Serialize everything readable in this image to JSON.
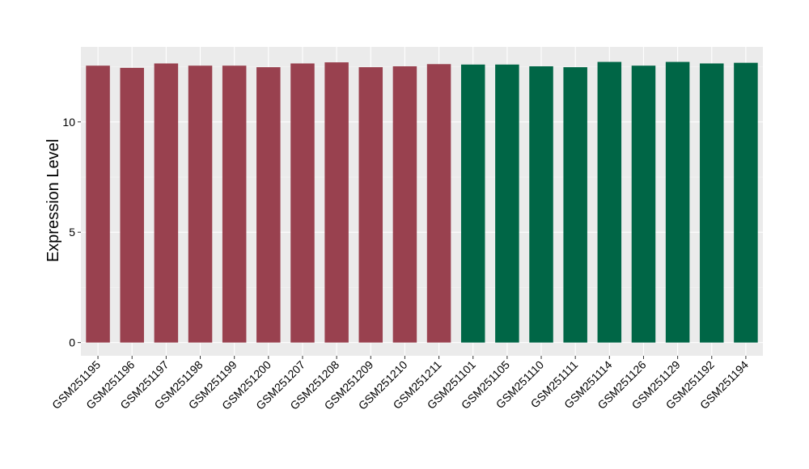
{
  "chart_data": {
    "type": "bar",
    "title": "",
    "xlabel": "",
    "ylabel": "Expression Level",
    "ylim": [
      -0.6,
      13.4
    ],
    "yticks": [
      0,
      5,
      10
    ],
    "grid": true,
    "legend": "none",
    "panel_color": "#EBEBEB",
    "categories": [
      "GSM251195",
      "GSM251196",
      "GSM251197",
      "GSM251198",
      "GSM251199",
      "GSM251200",
      "GSM251207",
      "GSM251208",
      "GSM251209",
      "GSM251210",
      "GSM251211",
      "GSM251101",
      "GSM251105",
      "GSM251110",
      "GSM251111",
      "GSM251114",
      "GSM251126",
      "GSM251129",
      "GSM251192",
      "GSM251194"
    ],
    "values": [
      12.55,
      12.45,
      12.65,
      12.55,
      12.55,
      12.48,
      12.65,
      12.7,
      12.48,
      12.52,
      12.62,
      12.6,
      12.6,
      12.52,
      12.48,
      12.72,
      12.55,
      12.72,
      12.65,
      12.68
    ],
    "group_colors": [
      "#99414F",
      "#99414F",
      "#99414F",
      "#99414F",
      "#99414F",
      "#99414F",
      "#99414F",
      "#99414F",
      "#99414F",
      "#99414F",
      "#99414F",
      "#006646",
      "#006646",
      "#006646",
      "#006646",
      "#006646",
      "#006646",
      "#006646",
      "#006646",
      "#006646"
    ]
  }
}
